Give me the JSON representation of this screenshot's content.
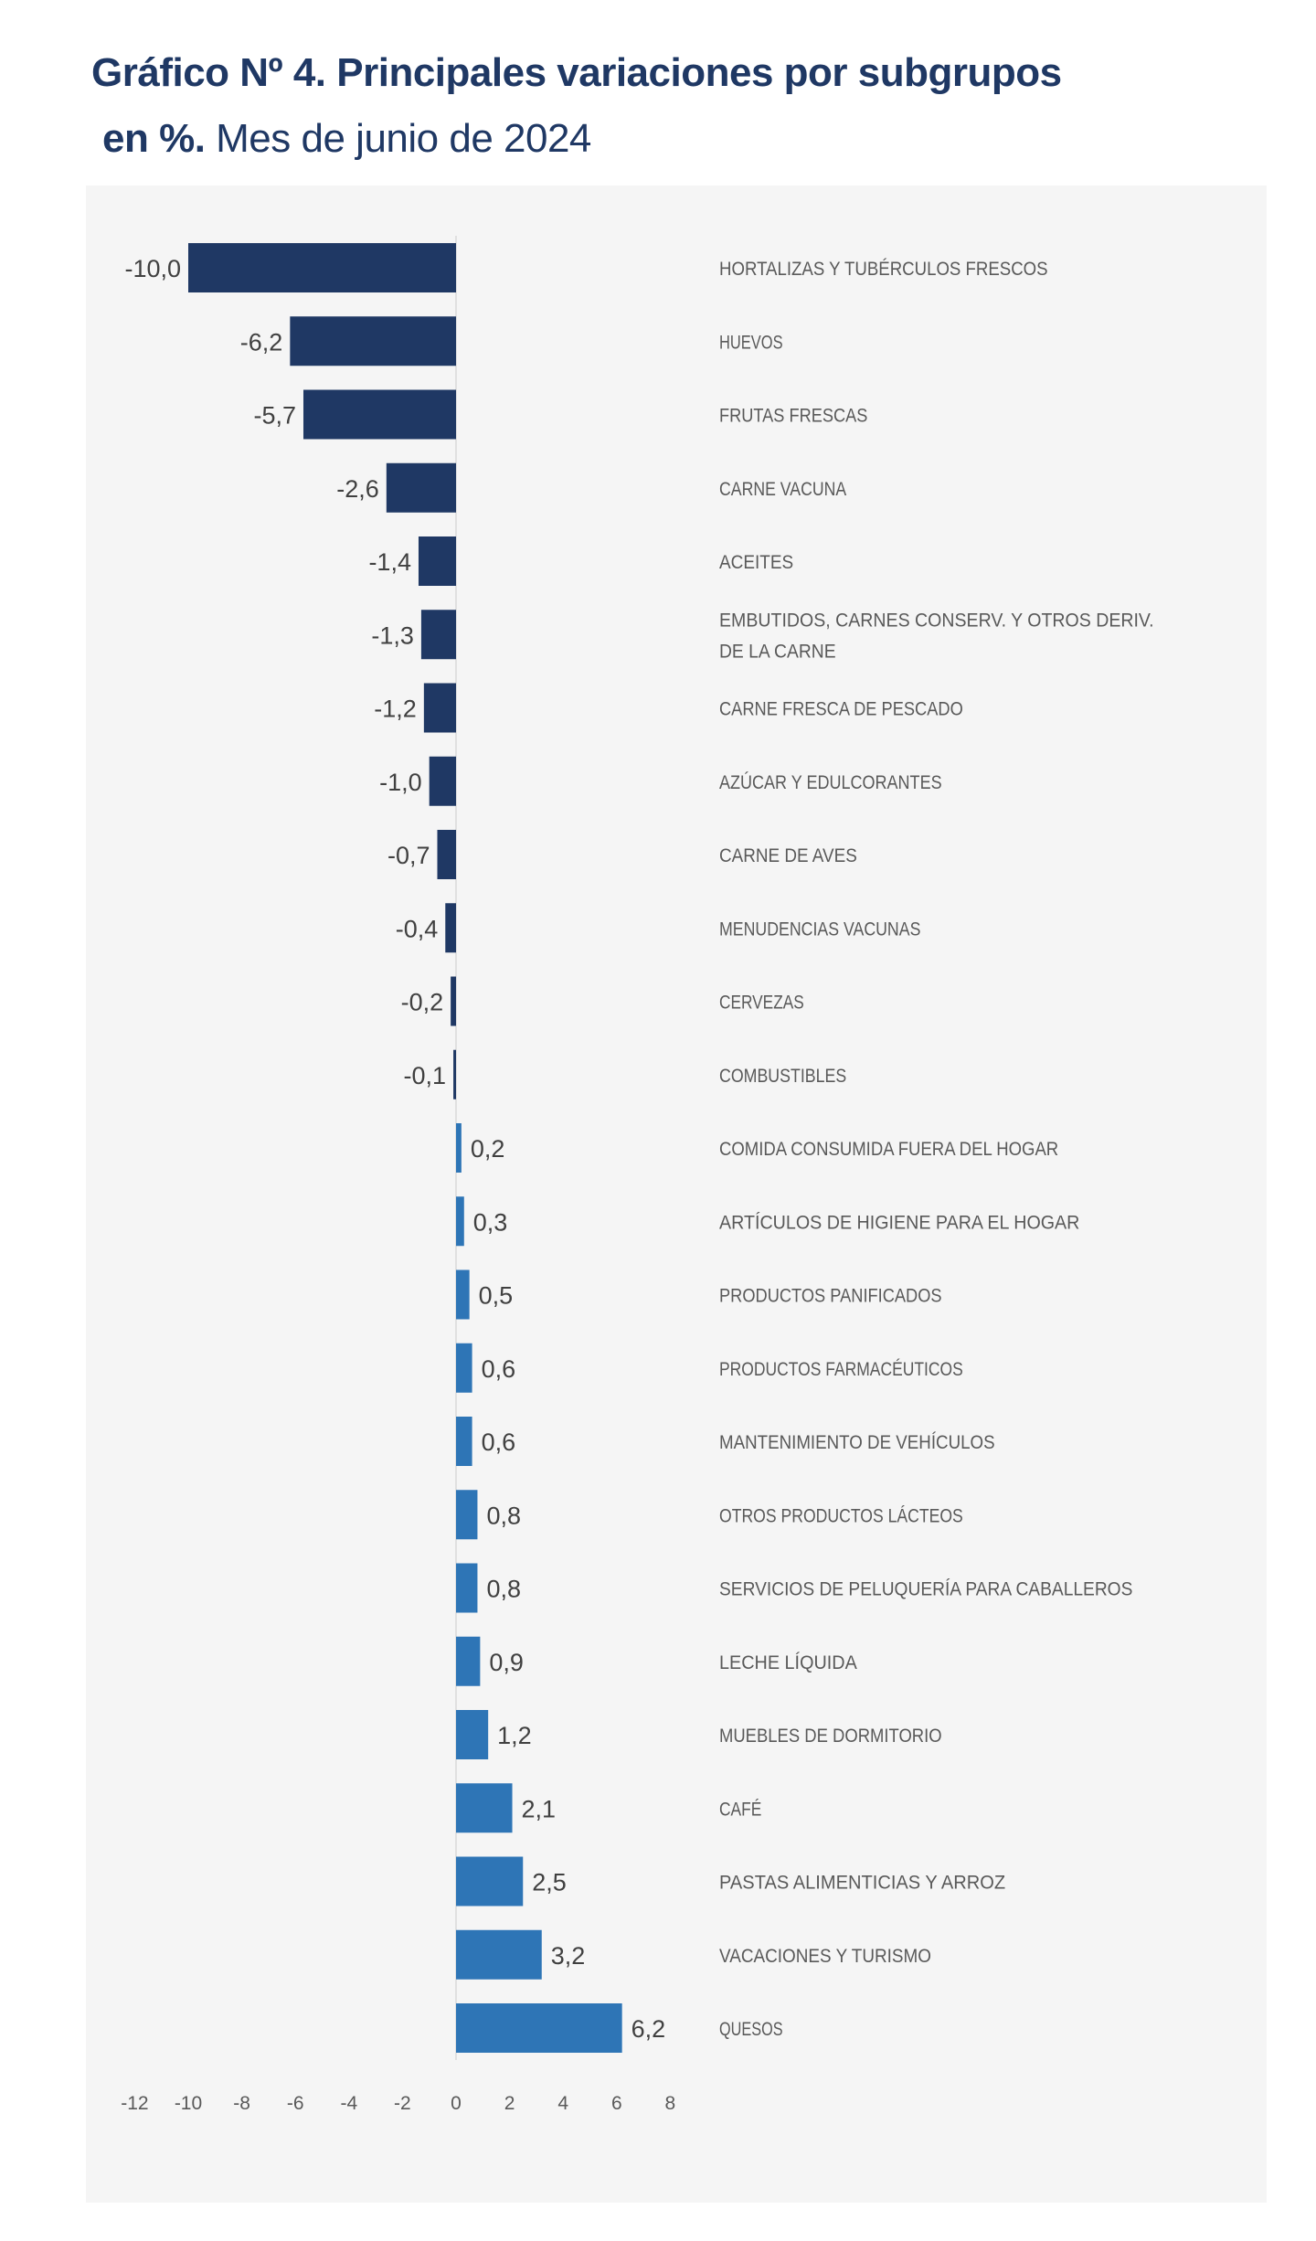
{
  "title": {
    "line1": "Gráfico Nº 4. Principales variaciones por subgrupos",
    "line2_bold": "en %.",
    "line2_rest": "Mes de junio de 2024"
  },
  "chart_data": {
    "type": "bar",
    "orientation": "horizontal",
    "title": "Gráfico Nº 4. Principales variaciones por subgrupos en %. Mes de junio de 2024",
    "categories": [
      "HORTALIZAS Y TUBÉRCULOS FRESCOS",
      "HUEVOS",
      "FRUTAS FRESCAS",
      "CARNE VACUNA",
      "ACEITES",
      "EMBUTIDOS, CARNES CONSERV. Y OTROS DERIV. DE LA CARNE",
      "CARNE FRESCA DE PESCADO",
      "AZÚCAR Y EDULCORANTES",
      "CARNE DE AVES",
      "MENUDENCIAS VACUNAS",
      "CERVEZAS",
      "COMBUSTIBLES",
      "COMIDA CONSUMIDA FUERA DEL HOGAR",
      "ARTÍCULOS DE HIGIENE PARA EL HOGAR",
      "PRODUCTOS PANIFICADOS",
      "PRODUCTOS FARMACÉUTICOS",
      "MANTENIMIENTO DE VEHÍCULOS",
      "OTROS PRODUCTOS LÁCTEOS",
      "SERVICIOS DE PELUQUERÍA PARA CABALLEROS",
      "LECHE LÍQUIDA",
      "MUEBLES DE DORMITORIO",
      "CAFÉ",
      "PASTAS ALIMENTICIAS Y ARROZ",
      "VACACIONES Y TURISMO",
      "QUESOS"
    ],
    "category_lines": {
      "5": [
        "EMBUTIDOS, CARNES CONSERV. Y OTROS DERIV.",
        "DE LA CARNE"
      ]
    },
    "values": [
      -10.0,
      -6.2,
      -5.7,
      -2.6,
      -1.4,
      -1.3,
      -1.2,
      -1.0,
      -0.7,
      -0.4,
      -0.2,
      -0.1,
      0.2,
      0.3,
      0.5,
      0.6,
      0.6,
      0.8,
      0.8,
      0.9,
      1.2,
      2.1,
      2.5,
      3.2,
      6.2
    ],
    "value_labels": [
      "-10,0",
      "-6,2",
      "-5,7",
      "-2,6",
      "-1,4",
      "-1,3",
      "-1,2",
      "-1,0",
      "-0,7",
      "-0,4",
      "-0,2",
      "-0,1",
      "0,2",
      "0,3",
      "0,5",
      "0,6",
      "0,6",
      "0,8",
      "0,8",
      "0,9",
      "1,2",
      "2,1",
      "2,5",
      "3,2",
      "6,2"
    ],
    "x_ticks": [
      "-12",
      "-10",
      "-8",
      "-6",
      "-4",
      "-2",
      "0",
      "2",
      "4",
      "6",
      "8"
    ],
    "xlim": [
      -12,
      8
    ],
    "xlabel": "",
    "ylabel": "",
    "grid": false,
    "legend": "none",
    "colors": {
      "negative": "#1f3864",
      "positive": "#2e75b6",
      "panel": "#f5f5f5",
      "label": "#595959"
    }
  }
}
